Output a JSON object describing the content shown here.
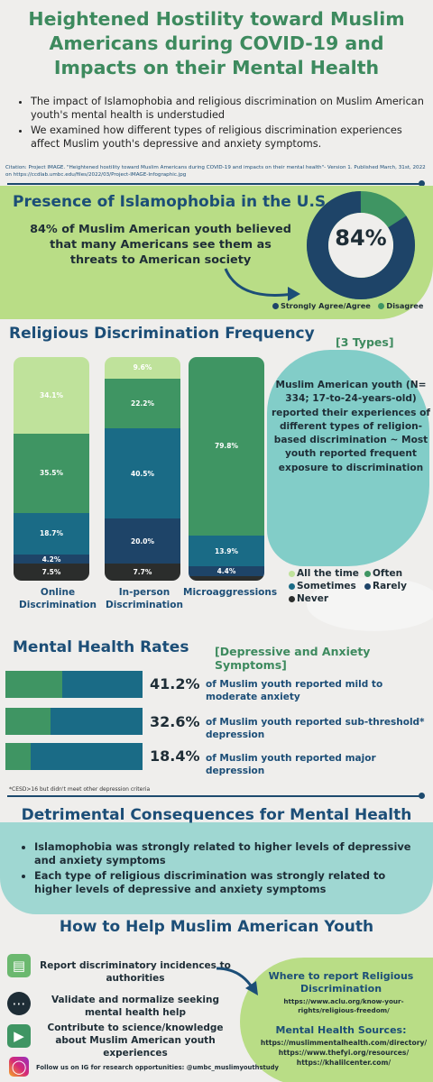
{
  "header": {
    "title": "Heightened Hostility toward Muslim Americans during COVID-19 and Impacts on their Mental Health",
    "bullets": [
      "The impact of Islamophobia and religious discrimination on Muslim American youth's mental health is understudied",
      "We examined how different types of religious discrimination experiences affect Muslim youth's depressive and anxiety symptoms."
    ],
    "citation": "Citation: Project IMAGE. \"Heightened hostility toward Muslim Americans during COVID-19 and impacts on their mental health\"- Version 1. Published March, 31st, 2022 on https://ccdlab.umbc.edu/files/2022/03/Project-IMAGE-Infographic.jpg"
  },
  "islamophobia": {
    "title": "Presence of Islamophobia in the U.S.",
    "text": "84% of Muslim American youth believed that many Americans see them as threats to American society",
    "donut_label": "84%",
    "legend": [
      "Strongly Agree/Agree",
      "Disagree"
    ]
  },
  "discrimination": {
    "title": "Religious Discrimination Frequency",
    "subtitle": "[3 Types]",
    "description": "Muslim American youth (N= 334; 17-to-24-years-old) reported their experiences of different types of religion-based discrimination ~ Most youth reported frequent exposure to discrimination",
    "legend": [
      "All the time",
      "Often",
      "Sometimes",
      "Rarely",
      "Never"
    ]
  },
  "chart_data": {
    "type": "bar",
    "stacked": true,
    "categories": [
      "Online Discrimination",
      "In-person Discrimination",
      "Microaggressions"
    ],
    "series": [
      {
        "name": "All the time",
        "values": [
          34.1,
          9.6,
          0
        ]
      },
      {
        "name": "Often",
        "values": [
          35.5,
          22.2,
          79.8
        ]
      },
      {
        "name": "Sometimes",
        "values": [
          18.7,
          40.5,
          13.9
        ]
      },
      {
        "name": "Rarely",
        "values": [
          4.2,
          20.0,
          4.4
        ]
      },
      {
        "name": "Never",
        "values": [
          7.5,
          7.7,
          1.9
        ]
      }
    ],
    "labels": [
      [
        "34.1%",
        "35.5%",
        "18.7%",
        "4.2%",
        "7.5%"
      ],
      [
        "9.6%",
        "22.2%",
        "40.5%",
        "20.0%",
        "7.7%"
      ],
      [
        "",
        "79.8%",
        "13.9%",
        "4.4%",
        ""
      ]
    ],
    "colors": {
      "All the time": "#bfe29b",
      "Often": "#3f9563",
      "Sometimes": "#1a6b86",
      "Rarely": "#1e4468",
      "Never": "#2b2d2c"
    }
  },
  "mental_health": {
    "title": "Mental Health Rates",
    "subtitle": "[Depressive and Anxiety Symptoms]",
    "rates": [
      {
        "value": "41.2%",
        "fraction": 0.412,
        "text": "of Muslim youth reported mild to moderate anxiety"
      },
      {
        "value": "32.6%",
        "fraction": 0.326,
        "text": "of Muslim youth reported sub-threshold* depression"
      },
      {
        "value": "18.4%",
        "fraction": 0.184,
        "text": "of Muslim youth reported major depression"
      }
    ],
    "footnote": "*CESD>16 but didn't meet other depression criteria"
  },
  "consequences": {
    "title": "Detrimental Consequences for Mental Health",
    "bullets": [
      "Islamophobia was strongly related to higher levels of depressive and anxiety symptoms",
      "Each type of religious discrimination was strongly related to higher levels of depressive and anxiety symptoms"
    ]
  },
  "help": {
    "title": "How to Help Muslim American Youth",
    "items": [
      {
        "icon": "report-icon",
        "text": "Report discriminatory incidences to authorities"
      },
      {
        "icon": "chat-icon",
        "text": "Validate and normalize seeking mental health help"
      },
      {
        "icon": "megaphone-icon",
        "text": "Contribute to science/knowledge about Muslim American youth experiences"
      }
    ],
    "instagram": "Follow us on IG for research opportunities: @umbc_muslimyouthstudy",
    "where_title": "Where to report Religious Discrimination",
    "where_link": "https://www.aclu.org/know-your-rights/religious-freedom/",
    "mh_title": "Mental Health Sources:",
    "mh_links": [
      "https://muslimmentalhealth.com/directory/",
      "https://www.thefyi.org/resources/",
      "https://khalilcenter.com/"
    ]
  }
}
